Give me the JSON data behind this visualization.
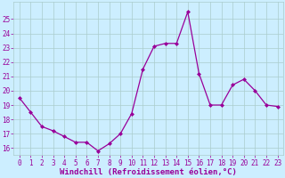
{
  "x": [
    0,
    1,
    2,
    3,
    4,
    5,
    6,
    7,
    8,
    9,
    10,
    11,
    12,
    13,
    14,
    15,
    16,
    17,
    18,
    19,
    20,
    21,
    22,
    23
  ],
  "y": [
    19.5,
    18.5,
    17.5,
    17.2,
    16.8,
    16.4,
    16.4,
    15.8,
    16.3,
    17.0,
    18.4,
    21.5,
    23.1,
    23.3,
    23.3,
    25.5,
    21.2,
    19.0,
    19.0,
    20.4,
    20.8,
    20.0,
    19.0,
    18.9
  ],
  "line_color": "#990099",
  "marker": "D",
  "marker_size": 2.0,
  "bg_color": "#cceeff",
  "grid_color": "#aacccc",
  "xlabel": "Windchill (Refroidissement éolien,°C)",
  "xlabel_color": "#990099",
  "tick_color": "#990099",
  "ylim": [
    15.5,
    26.2
  ],
  "xlim": [
    -0.5,
    23.5
  ],
  "yticks": [
    16,
    17,
    18,
    19,
    20,
    21,
    22,
    23,
    24,
    25
  ],
  "xticks": [
    0,
    1,
    2,
    3,
    4,
    5,
    6,
    7,
    8,
    9,
    10,
    11,
    12,
    13,
    14,
    15,
    16,
    17,
    18,
    19,
    20,
    21,
    22,
    23
  ],
  "tick_fontsize": 5.5,
  "xlabel_fontsize": 6.5,
  "linewidth": 0.9
}
